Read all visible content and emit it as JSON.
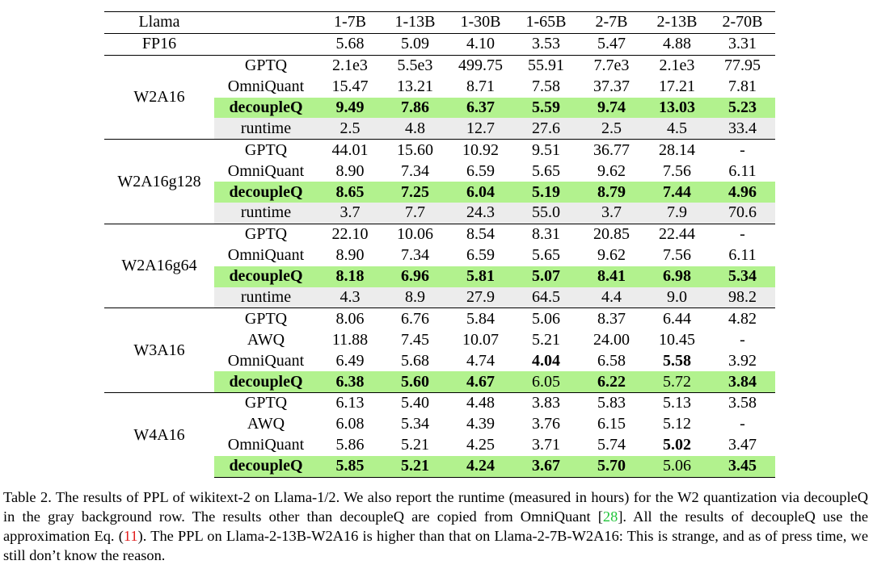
{
  "table": {
    "model_label": "Llama",
    "columns": [
      "1-7B",
      "1-13B",
      "1-30B",
      "1-65B",
      "2-7B",
      "2-13B",
      "2-70B"
    ],
    "fp16": {
      "label": "FP16",
      "values": [
        "5.68",
        "5.09",
        "4.10",
        "3.53",
        "5.47",
        "4.88",
        "3.31"
      ]
    },
    "groups": [
      {
        "name": "W2A16",
        "rows": [
          {
            "method": "GPTQ",
            "values": [
              "2.1e3",
              "5.5e3",
              "499.75",
              "55.91",
              "7.7e3",
              "2.1e3",
              "77.95"
            ],
            "bold": []
          },
          {
            "method": "OmniQuant",
            "values": [
              "15.47",
              "13.21",
              "8.71",
              "7.58",
              "37.37",
              "17.21",
              "7.81"
            ],
            "bold": []
          },
          {
            "method": "decoupleQ",
            "values": [
              "9.49",
              "7.86",
              "6.37",
              "5.59",
              "9.74",
              "13.03",
              "5.23"
            ],
            "bold": [
              0,
              1,
              2,
              3,
              4,
              5,
              6
            ],
            "highlight": true
          },
          {
            "method": "runtime",
            "values": [
              "2.5",
              "4.8",
              "12.7",
              "27.6",
              "2.5",
              "4.5",
              "33.4"
            ],
            "bold": [],
            "runtime": true
          }
        ]
      },
      {
        "name": "W2A16g128",
        "rows": [
          {
            "method": "GPTQ",
            "values": [
              "44.01",
              "15.60",
              "10.92",
              "9.51",
              "36.77",
              "28.14",
              "-"
            ],
            "bold": []
          },
          {
            "method": "OmniQuant",
            "values": [
              "8.90",
              "7.34",
              "6.59",
              "5.65",
              "9.62",
              "7.56",
              "6.11"
            ],
            "bold": []
          },
          {
            "method": "decoupleQ",
            "values": [
              "8.65",
              "7.25",
              "6.04",
              "5.19",
              "8.79",
              "7.44",
              "4.96"
            ],
            "bold": [
              0,
              1,
              2,
              3,
              4,
              5,
              6
            ],
            "highlight": true
          },
          {
            "method": "runtime",
            "values": [
              "3.7",
              "7.7",
              "24.3",
              "55.0",
              "3.7",
              "7.9",
              "70.6"
            ],
            "bold": [],
            "runtime": true
          }
        ]
      },
      {
        "name": "W2A16g64",
        "rows": [
          {
            "method": "GPTQ",
            "values": [
              "22.10",
              "10.06",
              "8.54",
              "8.31",
              "20.85",
              "22.44",
              "-"
            ],
            "bold": []
          },
          {
            "method": "OmniQuant",
            "values": [
              "8.90",
              "7.34",
              "6.59",
              "5.65",
              "9.62",
              "7.56",
              "6.11"
            ],
            "bold": []
          },
          {
            "method": "decoupleQ",
            "values": [
              "8.18",
              "6.96",
              "5.81",
              "5.07",
              "8.41",
              "6.98",
              "5.34"
            ],
            "bold": [
              0,
              1,
              2,
              3,
              4,
              5,
              6
            ],
            "highlight": true
          },
          {
            "method": "runtime",
            "values": [
              "4.3",
              "8.9",
              "27.9",
              "64.5",
              "4.4",
              "9.0",
              "98.2"
            ],
            "bold": [],
            "runtime": true
          }
        ]
      },
      {
        "name": "W3A16",
        "rows": [
          {
            "method": "GPTQ",
            "values": [
              "8.06",
              "6.76",
              "5.84",
              "5.06",
              "8.37",
              "6.44",
              "4.82"
            ],
            "bold": []
          },
          {
            "method": "AWQ",
            "values": [
              "11.88",
              "7.45",
              "10.07",
              "5.21",
              "24.00",
              "10.45",
              "-"
            ],
            "bold": []
          },
          {
            "method": "OmniQuant",
            "values": [
              "6.49",
              "5.68",
              "4.74",
              "4.04",
              "6.58",
              "5.58",
              "3.92"
            ],
            "bold": [
              3,
              5
            ]
          },
          {
            "method": "decoupleQ",
            "values": [
              "6.38",
              "5.60",
              "4.67",
              "6.05",
              "6.22",
              "5.72",
              "3.84"
            ],
            "bold": [
              0,
              1,
              2,
              4,
              6
            ],
            "highlight": true
          }
        ]
      },
      {
        "name": "W4A16",
        "rows": [
          {
            "method": "GPTQ",
            "values": [
              "6.13",
              "5.40",
              "4.48",
              "3.83",
              "5.83",
              "5.13",
              "3.58"
            ],
            "bold": []
          },
          {
            "method": "AWQ",
            "values": [
              "6.08",
              "5.34",
              "4.39",
              "3.76",
              "6.15",
              "5.12",
              "-"
            ],
            "bold": []
          },
          {
            "method": "OmniQuant",
            "values": [
              "5.86",
              "5.21",
              "4.25",
              "3.71",
              "5.74",
              "5.02",
              "3.47"
            ],
            "bold": [
              5
            ]
          },
          {
            "method": "decoupleQ",
            "values": [
              "5.85",
              "5.21",
              "4.24",
              "3.67",
              "5.70",
              "5.06",
              "3.45"
            ],
            "bold": [
              0,
              1,
              2,
              3,
              4,
              6
            ],
            "highlight": true
          }
        ]
      }
    ]
  },
  "caption": {
    "part1": "Table 2. The results of PPL of wikitext-2 on Llama-1/2.  We also report the runtime (measured in hours) for the W2 quantization via decoupleQ in the gray background row. The results other than decoupleQ are copied from OmniQuant [",
    "ref": "28",
    "part2": "]. All the results of decoupleQ use the approximation Eq. (",
    "eq": "11",
    "part3": "). The PPL on Llama-2-13B-W2A16 is higher than that on Llama-2-7B-W2A16: This is strange, and as of press time, we still don’t know the reason."
  },
  "colors": {
    "highlight": "#b2f28e",
    "runtime_bg": "#ececec",
    "ref": "#21c43a",
    "eqref": "#e21e1e"
  }
}
